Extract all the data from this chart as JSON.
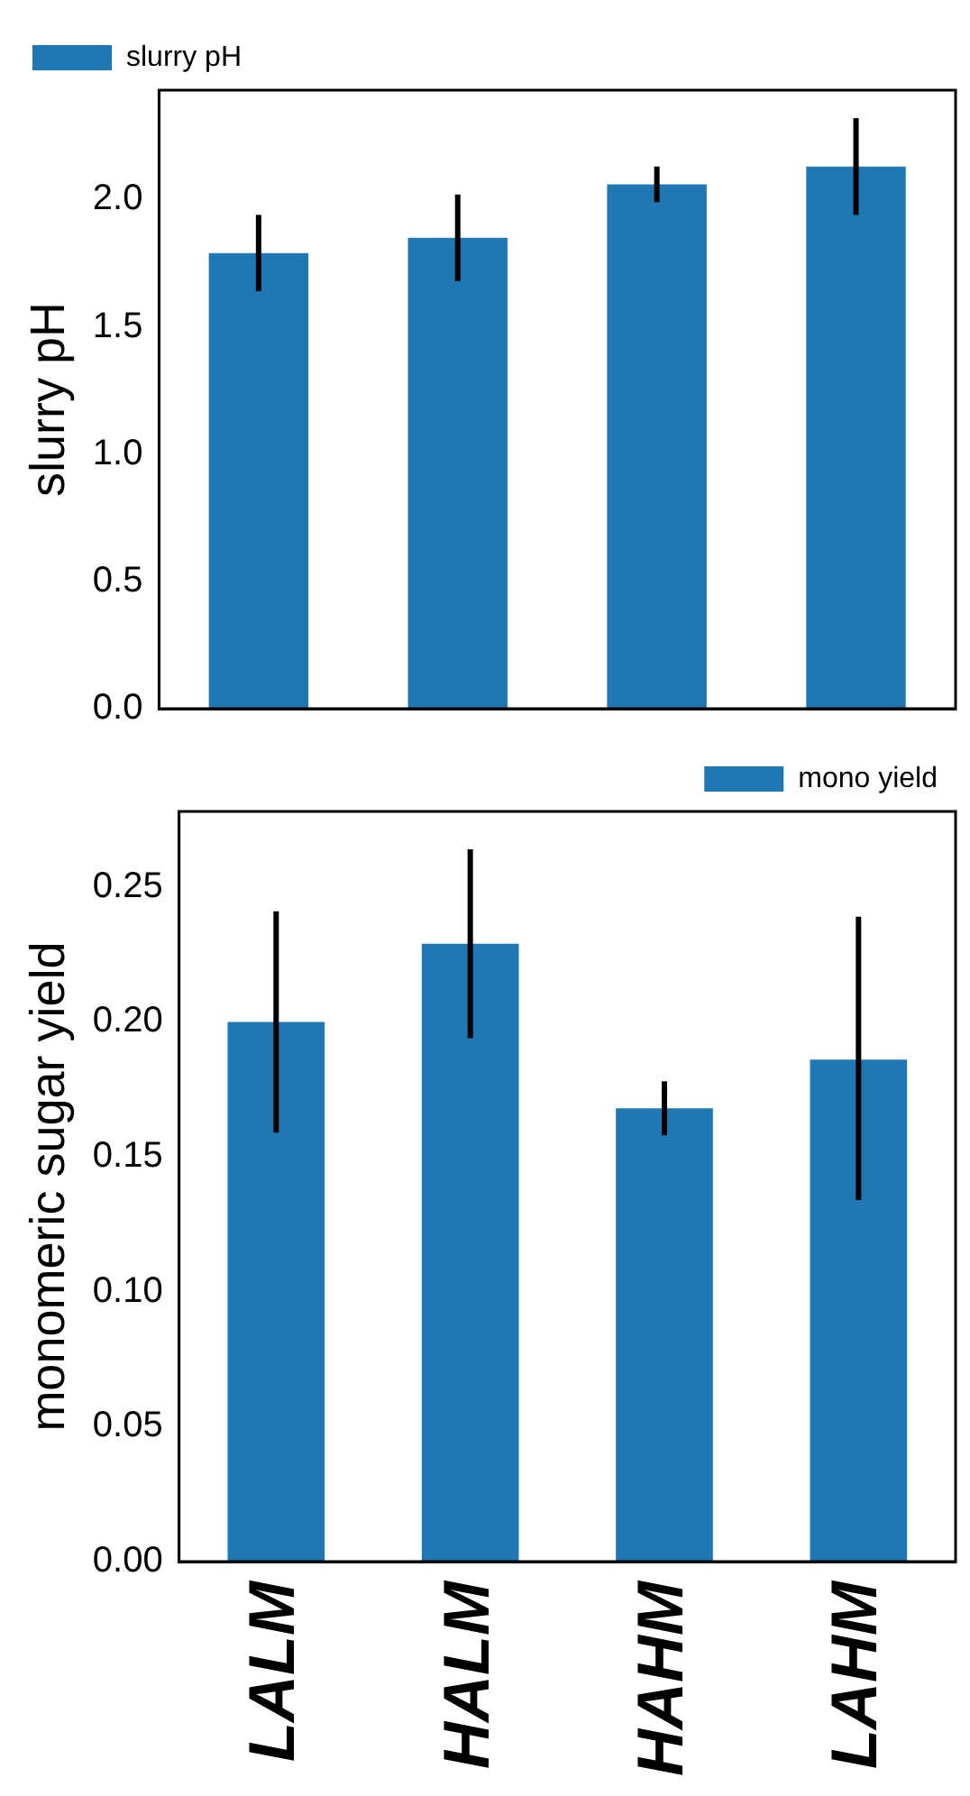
{
  "chart_data": [
    {
      "type": "bar",
      "ylabel": "slurry pH",
      "categories": [
        null,
        null,
        null,
        null
      ],
      "series": [
        {
          "name": "slurry pH",
          "color": "#1f77b4",
          "values": [
            1.79,
            1.85,
            2.06,
            2.13
          ],
          "errors": [
            [
              1.64,
              1.94
            ],
            [
              1.68,
              2.02
            ],
            [
              1.99,
              2.13
            ],
            [
              1.94,
              2.32
            ]
          ]
        }
      ],
      "ylim": [
        0,
        2.43
      ],
      "yticks": [
        {
          "value": 0,
          "label": "0.0"
        },
        0.5,
        {
          "value": 1,
          "label": "1.0"
        },
        1.5,
        {
          "value": 2,
          "label": "2.0"
        }
      ],
      "tick_labels": "y",
      "legend": "top left",
      "grid": false
    },
    {
      "type": "bar",
      "ylabel": "monomeric sugar yield",
      "categories": [
        "LALM",
        "HALM",
        "HAHM",
        "LAHM"
      ],
      "series": [
        {
          "name": "mono yield",
          "color": "#1f77b4",
          "values": [
            0.2,
            0.229,
            0.168,
            0.186
          ],
          "errors": [
            [
              0.159,
              0.241
            ],
            [
              0.194,
              0.264
            ],
            [
              0.158,
              0.178
            ],
            [
              0.134,
              0.239
            ]
          ]
        }
      ],
      "ylim": [
        0,
        0.278
      ],
      "yticks": [
        {
          "value": 0,
          "label": "0.00"
        },
        {
          "value": 0.05,
          "label": "0.05"
        },
        {
          "value": 0.1,
          "label": "0.10"
        },
        {
          "value": 0.15,
          "label": "0.15"
        },
        {
          "value": 0.2,
          "label": "0.20"
        },
        {
          "value": 0.25,
          "label": "0.25"
        }
      ],
      "legend": "top right",
      "grid": false
    }
  ]
}
